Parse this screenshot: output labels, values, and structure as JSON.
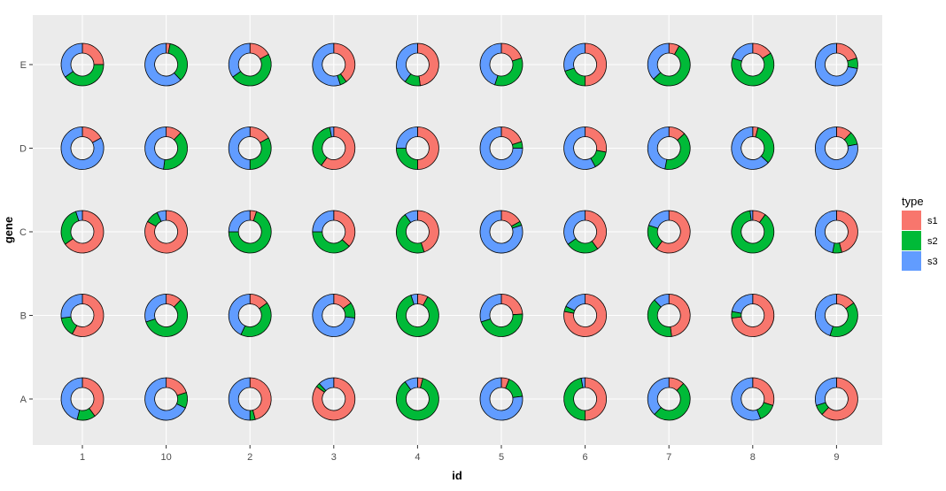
{
  "chart_data": {
    "type": "donut-grid",
    "xlabel": "id",
    "ylabel": "gene",
    "x_categories": [
      "1",
      "10",
      "2",
      "3",
      "4",
      "5",
      "6",
      "7",
      "8",
      "9"
    ],
    "y_categories": [
      "A",
      "B",
      "C",
      "D",
      "E"
    ],
    "legend": {
      "title": "type",
      "placement": "right",
      "entries": [
        {
          "name": "s1",
          "color": "#F8766D"
        },
        {
          "name": "s2",
          "color": "#00BA38"
        },
        {
          "name": "s3",
          "color": "#619CFF"
        }
      ]
    },
    "panel_background": "#EBEBEB",
    "gridlines": true,
    "slice_order": [
      "s1",
      "s2",
      "s3"
    ],
    "values": {
      "E": {
        "1": [
          0.25,
          0.4,
          0.35
        ],
        "10": [
          0.03,
          0.35,
          0.62
        ],
        "2": [
          0.17,
          0.48,
          0.35
        ],
        "3": [
          0.4,
          0.05,
          0.55
        ],
        "4": [
          0.48,
          0.12,
          0.4
        ],
        "5": [
          0.2,
          0.35,
          0.45
        ],
        "6": [
          0.5,
          0.2,
          0.3
        ],
        "7": [
          0.08,
          0.55,
          0.37
        ],
        "8": [
          0.16,
          0.64,
          0.2
        ],
        "9": [
          0.2,
          0.08,
          0.72
        ]
      },
      "D": {
        "1": [
          0.17,
          0.0,
          0.83
        ],
        "10": [
          0.12,
          0.4,
          0.48
        ],
        "2": [
          0.17,
          0.33,
          0.5
        ],
        "3": [
          0.6,
          0.37,
          0.03
        ],
        "4": [
          0.5,
          0.25,
          0.25
        ],
        "5": [
          0.2,
          0.05,
          0.75
        ],
        "6": [
          0.28,
          0.14,
          0.58
        ],
        "7": [
          0.13,
          0.4,
          0.47
        ],
        "8": [
          0.04,
          0.33,
          0.63
        ],
        "9": [
          0.12,
          0.1,
          0.78
        ]
      },
      "C": {
        "1": [
          0.65,
          0.3,
          0.05
        ],
        "10": [
          0.83,
          0.1,
          0.07
        ],
        "2": [
          0.05,
          0.7,
          0.25
        ],
        "3": [
          0.37,
          0.38,
          0.25
        ],
        "4": [
          0.45,
          0.45,
          0.1
        ],
        "5": [
          0.17,
          0.03,
          0.8
        ],
        "6": [
          0.4,
          0.25,
          0.35
        ],
        "7": [
          0.6,
          0.2,
          0.2
        ],
        "8": [
          0.1,
          0.88,
          0.02
        ],
        "9": [
          0.46,
          0.07,
          0.47
        ]
      },
      "B": {
        "1": [
          0.58,
          0.15,
          0.27
        ],
        "10": [
          0.12,
          0.58,
          0.3
        ],
        "2": [
          0.15,
          0.42,
          0.43
        ],
        "3": [
          0.15,
          0.12,
          0.73
        ],
        "4": [
          0.08,
          0.87,
          0.05
        ],
        "5": [
          0.24,
          0.46,
          0.3
        ],
        "6": [
          0.78,
          0.04,
          0.18
        ],
        "7": [
          0.48,
          0.4,
          0.12
        ],
        "8": [
          0.73,
          0.05,
          0.22
        ],
        "9": [
          0.15,
          0.4,
          0.45
        ]
      },
      "A": {
        "1": [
          0.4,
          0.14,
          0.46
        ],
        "10": [
          0.2,
          0.12,
          0.68
        ],
        "2": [
          0.46,
          0.04,
          0.5
        ],
        "3": [
          0.85,
          0.03,
          0.12
        ],
        "4": [
          0.04,
          0.86,
          0.1
        ],
        "5": [
          0.06,
          0.17,
          0.77
        ],
        "6": [
          0.5,
          0.47,
          0.03
        ],
        "7": [
          0.12,
          0.5,
          0.38
        ],
        "8": [
          0.3,
          0.14,
          0.56
        ],
        "9": [
          0.62,
          0.08,
          0.3
        ]
      }
    }
  }
}
